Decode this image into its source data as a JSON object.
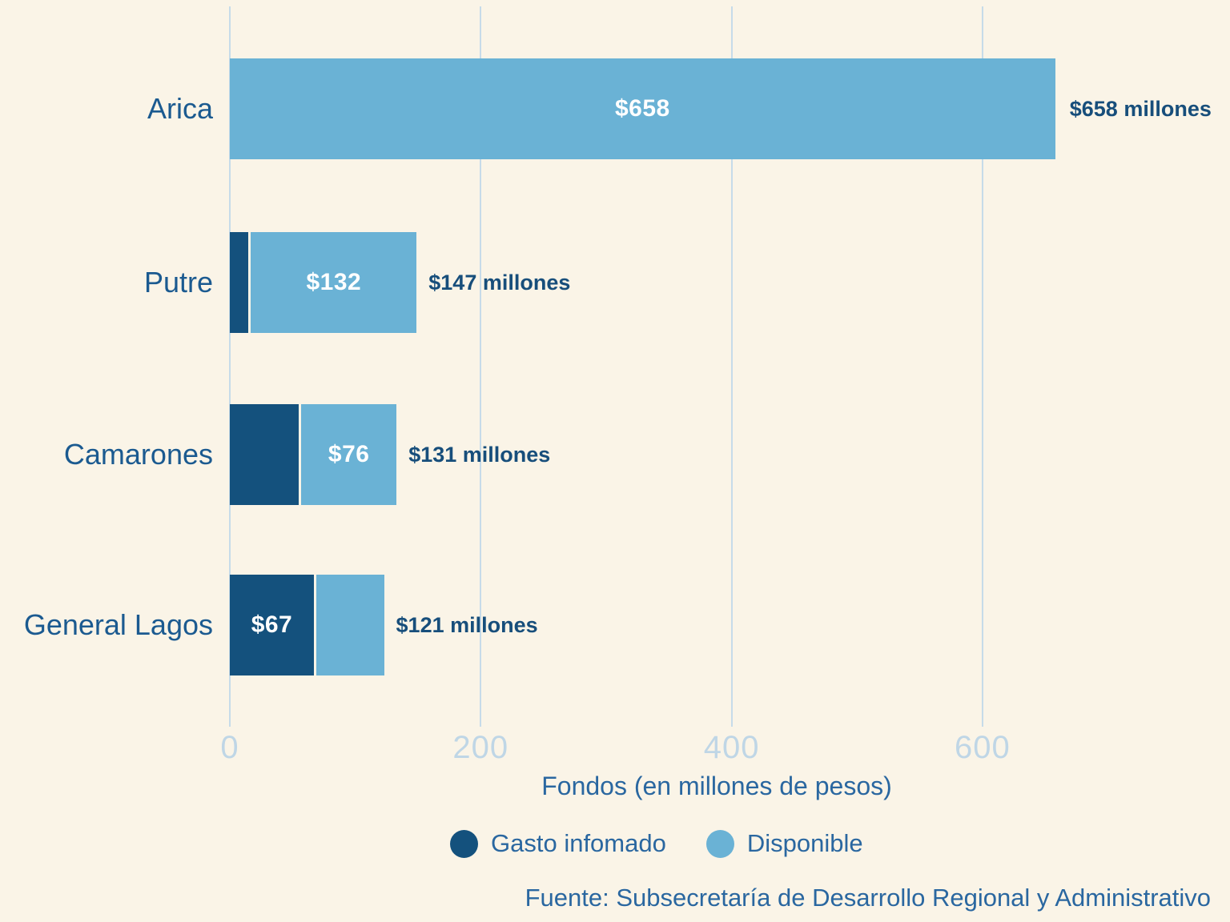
{
  "chart_data": {
    "type": "bar",
    "orientation": "horizontal",
    "stacked": true,
    "title": "",
    "categories": [
      "Arica",
      "Putre",
      "Camarones",
      "General Lagos"
    ],
    "series": [
      {
        "name": "Gasto infomado",
        "color": "#14517D",
        "values": [
          0,
          15,
          55,
          67
        ]
      },
      {
        "name": "Disponible",
        "color": "#6AB2D5",
        "values": [
          658,
          132,
          76,
          54
        ]
      }
    ],
    "totals": [
      658,
      147,
      131,
      121
    ],
    "total_labels": [
      "$658 millones",
      "$147 millones",
      "$131 millones",
      "$121 millones"
    ],
    "segment_labels": [
      {
        "gasto": "",
        "disponible": "$658"
      },
      {
        "gasto": "",
        "disponible": "$132"
      },
      {
        "gasto": "",
        "disponible": "$76"
      },
      {
        "gasto": "$67",
        "disponible": ""
      }
    ],
    "xlabel": "Fondos (en millones de pesos)",
    "x_ticks": [
      0,
      200,
      400,
      600
    ],
    "xlim": [
      0,
      780
    ],
    "grid": true,
    "legend_position": "bottom",
    "source": "Fuente: Subsecretaría de Desarrollo Regional y Administrativo"
  },
  "colors": {
    "background": "#FAF4E7",
    "gridline": "#C6DBE9",
    "tick_text": "#BFD6E6",
    "category_text": "#1B5A90",
    "axis_text": "#2A67A0",
    "total_text": "#174E7B",
    "bar_value_text": "#FFFFFF",
    "gasto": "#14517D",
    "disponible": "#6AB2D5"
  }
}
